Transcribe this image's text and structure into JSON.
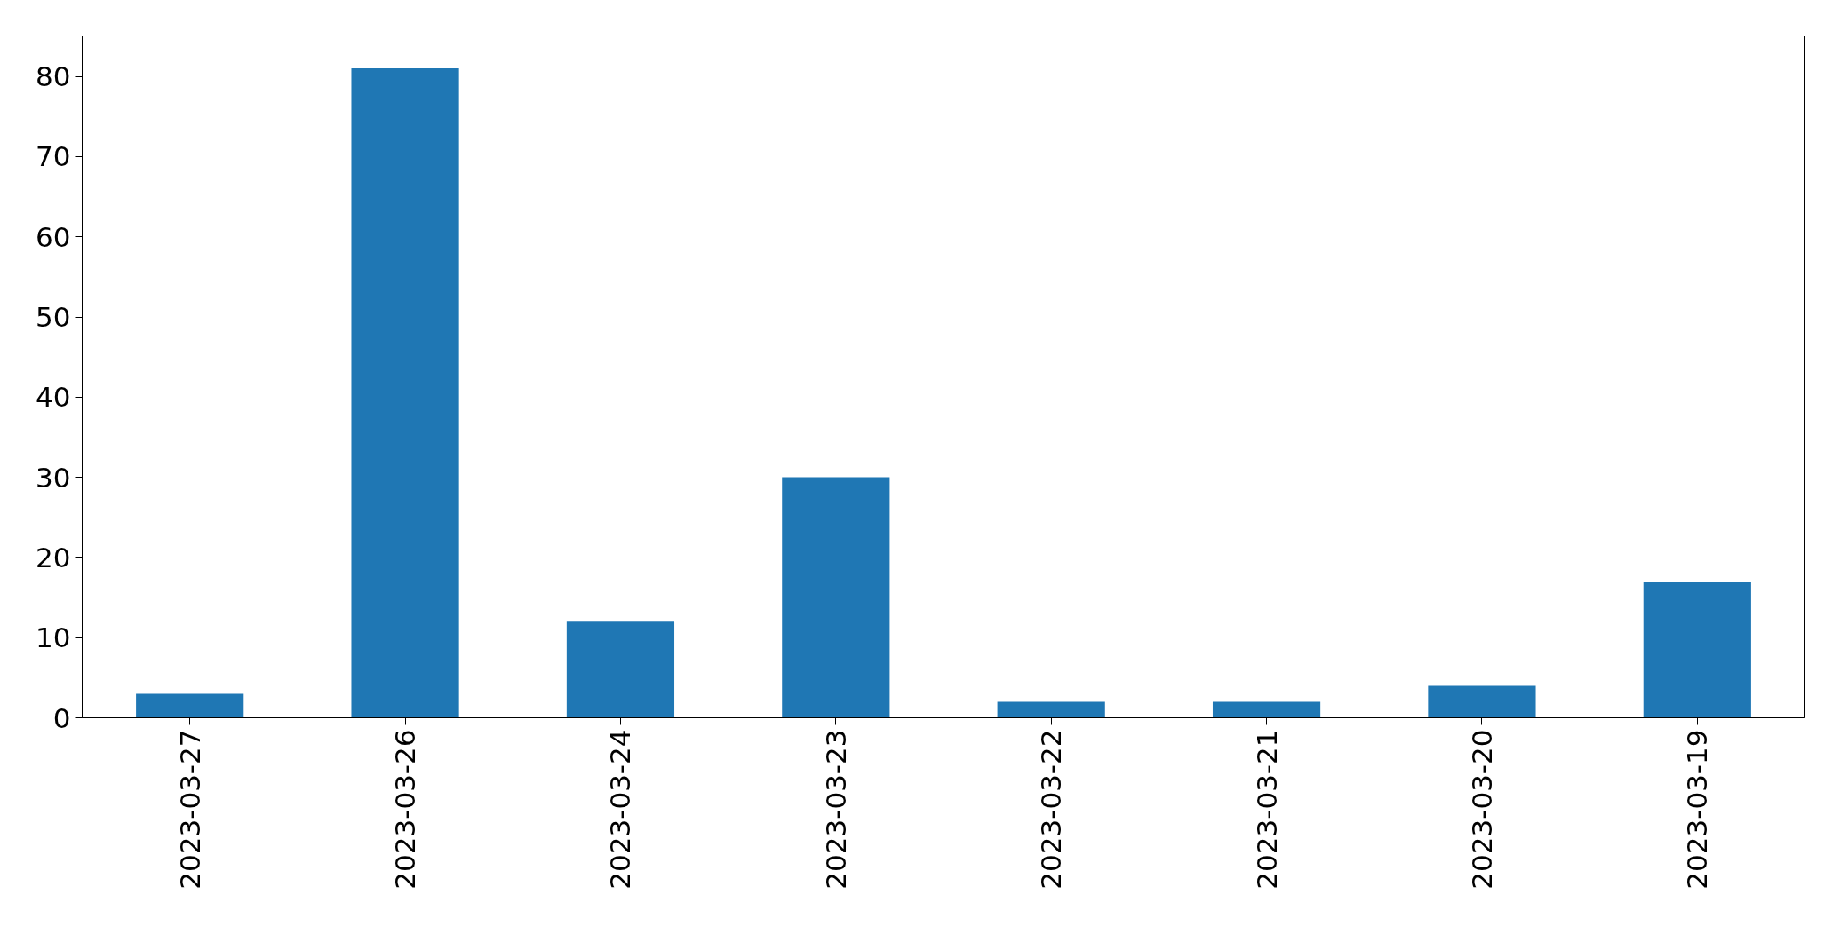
{
  "chart_data": {
    "type": "bar",
    "categories": [
      "2023-03-27",
      "2023-03-26",
      "2023-03-24",
      "2023-03-23",
      "2023-03-22",
      "2023-03-21",
      "2023-03-20",
      "2023-03-19"
    ],
    "values": [
      3,
      81,
      12,
      30,
      2,
      2,
      4,
      17
    ],
    "color": "#1f77b4",
    "ylim": [
      0,
      85.05
    ],
    "yticks": [
      0,
      10,
      20,
      30,
      40,
      50,
      60,
      70,
      80
    ],
    "grid": false
  }
}
